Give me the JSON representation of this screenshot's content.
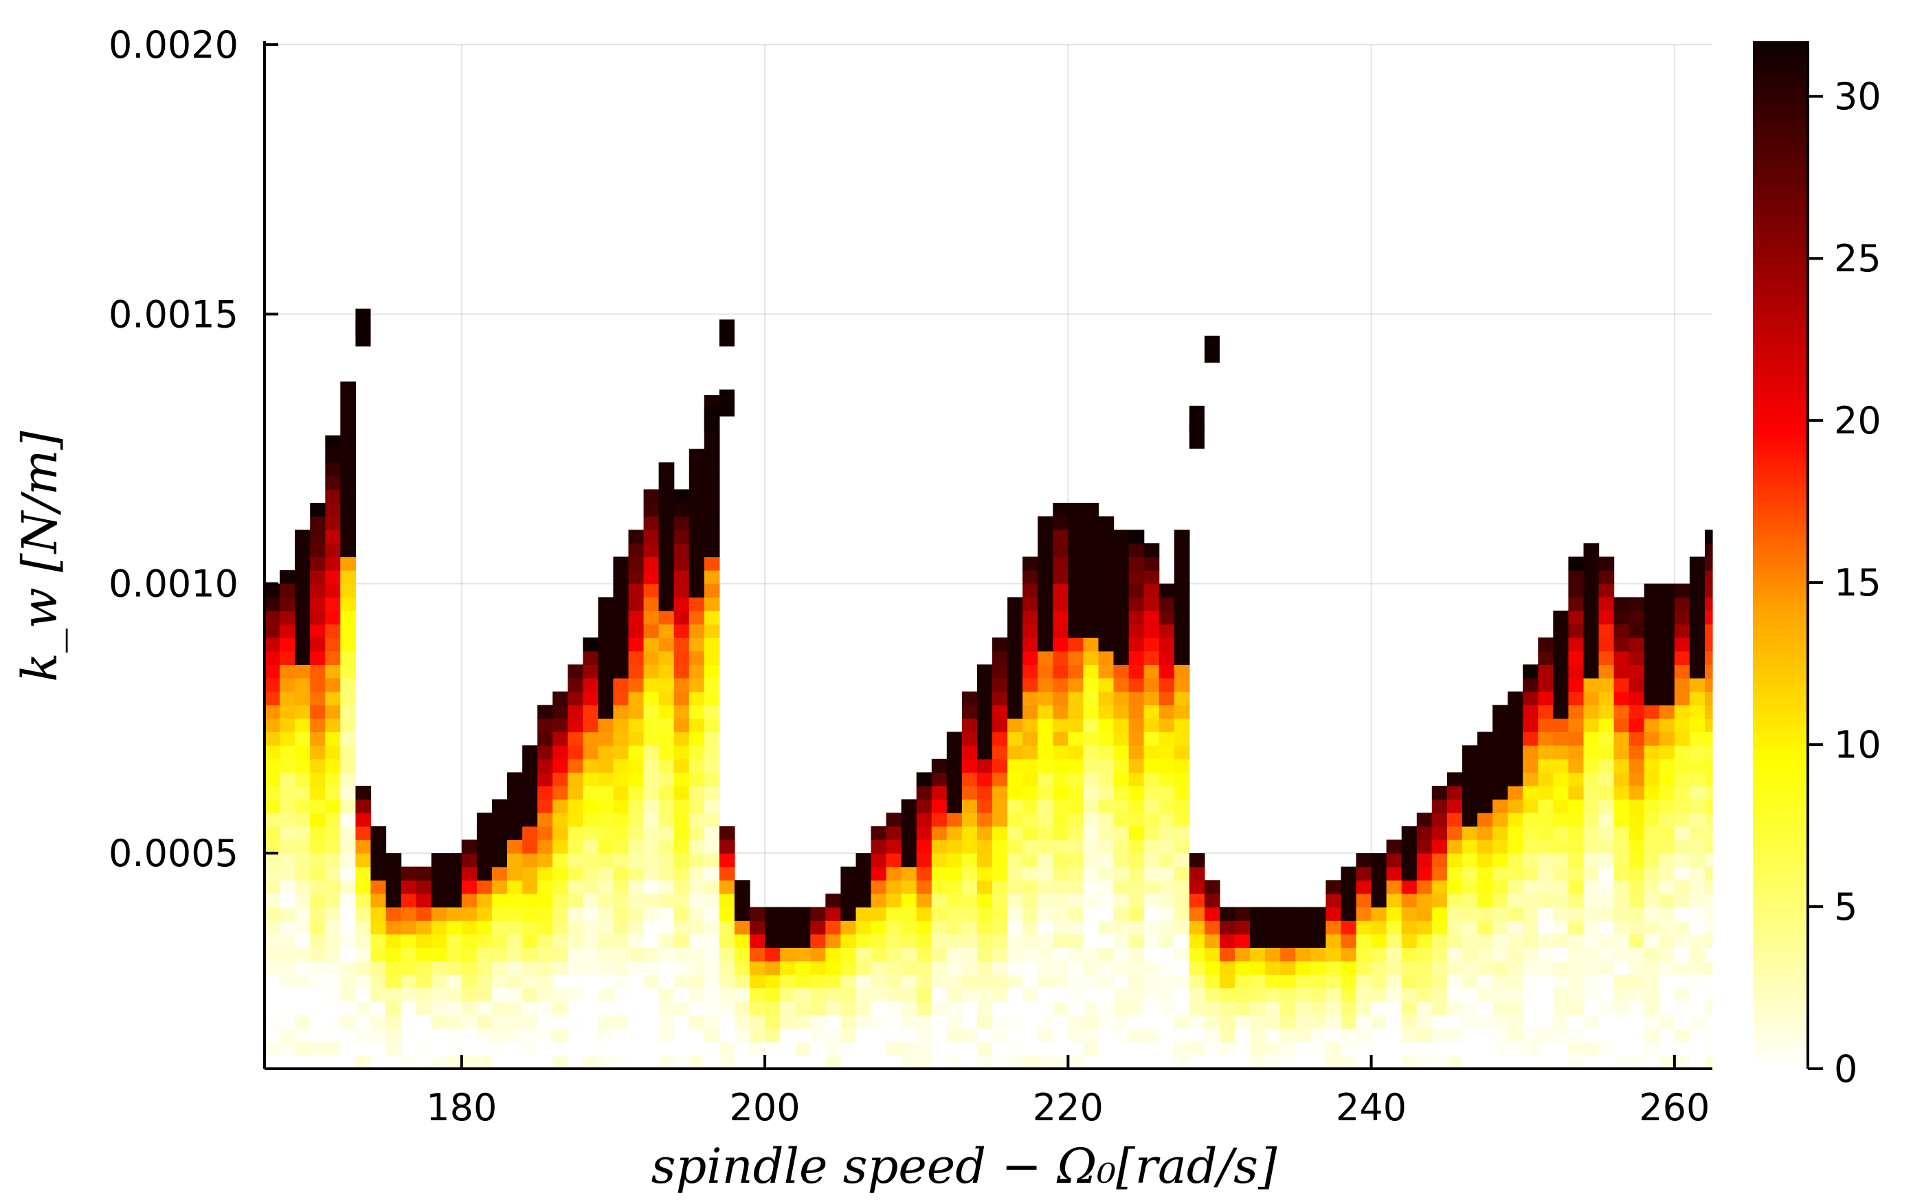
{
  "chart_data": {
    "type": "heatmap",
    "title": "",
    "xlabel": "spindle speed − Ω₀[rad/s]",
    "ylabel": "k_w [N/m]",
    "xlim": [
      167,
      262.5
    ],
    "ylim": [
      0.0001,
      0.002
    ],
    "x_ticks": [
      180,
      200,
      220,
      240,
      260
    ],
    "x_tick_labels": [
      "180",
      "200",
      "220",
      "240",
      "260"
    ],
    "y_ticks": [
      0.0005,
      0.001,
      0.0015,
      0.002
    ],
    "y_tick_labels": [
      "0.0005",
      "0.0010",
      "0.0015",
      "0.0020"
    ],
    "grid": true,
    "colorbar": {
      "range": [
        0,
        31.7
      ],
      "ticks": [
        0,
        5,
        10,
        15,
        20,
        25,
        30
      ],
      "tick_labels": [
        "0",
        "5",
        "10",
        "15",
        "20",
        "25",
        "30"
      ],
      "colormap": "hot (reversed)",
      "colors": [
        "#ffffff",
        "#ffff00",
        "#ffa000",
        "#ff0000",
        "#8a0000",
        "#0d0000"
      ]
    },
    "grid_x_step": 1,
    "grid_y_step": 2.5e-05,
    "boundary_profile": {
      "x": [
        167,
        168,
        169,
        170,
        171,
        172,
        173,
        174,
        175,
        176,
        177,
        178,
        179,
        180,
        181,
        182,
        183,
        184,
        185,
        186,
        187,
        188,
        189,
        190,
        191,
        192,
        193,
        194,
        195,
        196,
        197,
        198,
        199,
        200,
        201,
        202,
        203,
        204,
        205,
        206,
        207,
        208,
        209,
        210,
        211,
        212,
        213,
        214,
        215,
        216,
        217,
        218,
        219,
        220,
        221,
        222,
        223,
        224,
        225,
        226,
        227,
        228,
        229,
        230,
        231,
        232,
        233,
        234,
        235,
        236,
        237,
        238,
        239,
        240,
        241,
        242,
        243,
        244,
        245,
        246,
        247,
        248,
        249,
        250,
        251,
        252,
        253,
        254,
        255,
        256,
        257,
        258,
        259,
        260,
        261,
        262
      ],
      "y": [
        0.00101,
        0.00103,
        0.00109,
        0.00116,
        0.00127,
        0.00137,
        0.00063,
        0.00054,
        0.00049,
        0.00047,
        0.00047,
        0.00049,
        0.00051,
        0.00053,
        0.00057,
        0.00061,
        0.00064,
        0.0007,
        0.00077,
        0.0008,
        0.00086,
        0.00089,
        0.00098,
        0.00104,
        0.00111,
        0.00118,
        0.00122,
        0.00118,
        0.00124,
        0.00134,
        0.00056,
        0.00045,
        0.00041,
        0.0004,
        0.0004,
        0.0004,
        0.00041,
        0.00043,
        0.00047,
        0.0005,
        0.00054,
        0.00057,
        0.0006,
        0.00065,
        0.00068,
        0.00073,
        0.0008,
        0.00086,
        0.00091,
        0.00098,
        0.00106,
        0.00112,
        0.00114,
        0.00114,
        0.00114,
        0.00113,
        0.00111,
        0.00109,
        0.00107,
        0.001,
        0.00111,
        0.00049,
        0.00044,
        0.0004,
        0.0004,
        0.0004,
        0.0004,
        0.0004,
        0.00039,
        0.0004,
        0.00044,
        0.00047,
        0.00049,
        0.00051,
        0.00052,
        0.00055,
        0.00057,
        0.00062,
        0.00066,
        0.00069,
        0.00072,
        0.00077,
        0.00081,
        0.00085,
        0.00089,
        0.00094,
        0.00104,
        0.00108,
        0.00105,
        0.00098,
        0.00097,
        0.00099,
        0.00099,
        0.00101,
        0.00106,
        0.00109
      ]
    },
    "isolated_cells": [
      {
        "x": 173,
        "y": 0.00146
      },
      {
        "x": 173,
        "y": 0.00144
      },
      {
        "x": 197,
        "y": 0.00144
      },
      {
        "x": 197,
        "y": 0.00131
      },
      {
        "x": 196,
        "y": 0.00128
      },
      {
        "x": 229,
        "y": 0.00141
      },
      {
        "x": 228,
        "y": 0.00128
      },
      {
        "x": 228,
        "y": 0.00125
      }
    ]
  }
}
